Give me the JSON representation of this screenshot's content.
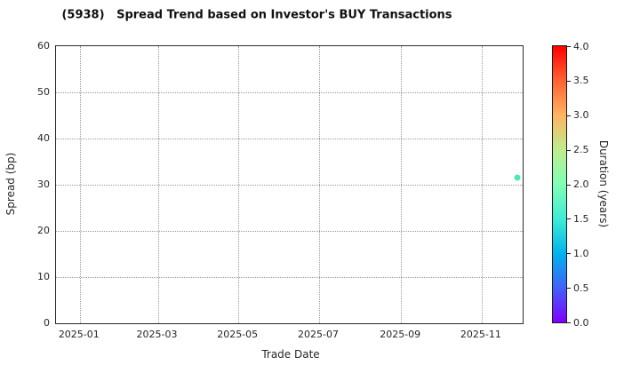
{
  "figure": {
    "background": "#ffffff",
    "frame_color": "#2b2b2b",
    "grid_color": "#9a9a9a",
    "text_color": "#262626"
  },
  "chart_data": {
    "type": "scatter",
    "title": "(5938)   Spread Trend based on Investor's BUY Transactions",
    "xlabel": "Trade Date",
    "ylabel": "Spread (bp)",
    "ylim": [
      0,
      60
    ],
    "yticks": [
      0,
      10,
      20,
      30,
      40,
      50,
      60
    ],
    "x_axis": {
      "start": "2024-12-14",
      "end": "2025-12-02"
    },
    "xticks": [
      {
        "label": "2025-01",
        "date": "2025-01-01"
      },
      {
        "label": "2025-03",
        "date": "2025-03-01"
      },
      {
        "label": "2025-05",
        "date": "2025-05-01"
      },
      {
        "label": "2025-07",
        "date": "2025-07-01"
      },
      {
        "label": "2025-09",
        "date": "2025-09-01"
      },
      {
        "label": "2025-11",
        "date": "2025-11-01"
      }
    ],
    "grid": "dotted, both axes",
    "legend_position": "none",
    "points": [
      {
        "date": "2025-11-28",
        "spread_bp": 31.6,
        "duration_years": 1.6,
        "color": "#4be9b9"
      }
    ],
    "colorbar": {
      "label": "Duration (years)",
      "min": 0.0,
      "max": 4.0,
      "tick_step": 0.5,
      "tick_labels": [
        "0.0",
        "0.5",
        "1.0",
        "1.5",
        "2.0",
        "2.5",
        "3.0",
        "3.5",
        "4.0"
      ],
      "colormap": "rainbow",
      "stops": [
        {
          "value": 0.0,
          "color": "#8000ff"
        },
        {
          "value": 0.5,
          "color": "#4062fa"
        },
        {
          "value": 1.0,
          "color": "#00b4ec"
        },
        {
          "value": 1.5,
          "color": "#40ecd4"
        },
        {
          "value": 2.0,
          "color": "#80ffb5"
        },
        {
          "value": 2.5,
          "color": "#bfec8e"
        },
        {
          "value": 3.0,
          "color": "#ffb462"
        },
        {
          "value": 3.5,
          "color": "#ff6232"
        },
        {
          "value": 4.0,
          "color": "#ff0000"
        }
      ]
    }
  }
}
